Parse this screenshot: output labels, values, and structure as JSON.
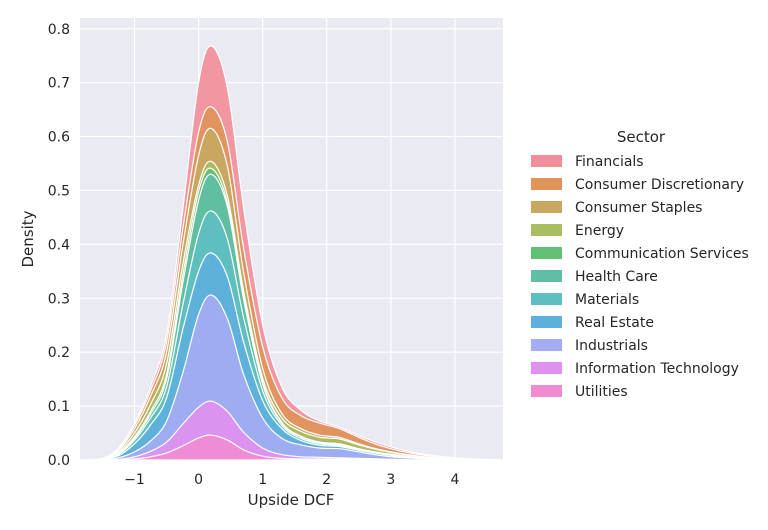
{
  "chart_data": {
    "type": "area",
    "stacked": true,
    "xlabel": "Upside DCF",
    "ylabel": "Density",
    "xlim": [
      -1.85,
      4.75
    ],
    "ylim": [
      0,
      0.82
    ],
    "xticks": [
      -1,
      0,
      1,
      2,
      3,
      4
    ],
    "yticks": [
      0.0,
      0.1,
      0.2,
      0.3,
      0.4,
      0.5,
      0.6,
      0.7,
      0.8
    ],
    "grid": true,
    "legend": {
      "title": "Sector",
      "placement": "right",
      "entries": [
        {
          "name": "Financials",
          "color": "#f28e9a"
        },
        {
          "name": "Consumer Discretionary",
          "color": "#e0945a"
        },
        {
          "name": "Consumer Staples",
          "color": "#c8a861"
        },
        {
          "name": "Energy",
          "color": "#a9bd62"
        },
        {
          "name": "Communication Services",
          "color": "#62bf76"
        },
        {
          "name": "Health Care",
          "color": "#5fbfa5"
        },
        {
          "name": "Materials",
          "color": "#5fbfc0"
        },
        {
          "name": "Real Estate",
          "color": "#5eb0dc"
        },
        {
          "name": "Industrials",
          "color": "#a4acf3"
        },
        {
          "name": "Information Technology",
          "color": "#df90f0"
        },
        {
          "name": "Utilities",
          "color": "#f28ad2"
        }
      ]
    },
    "x": [
      -1.8,
      -1.5,
      -1.25,
      -1.0,
      -0.75,
      -0.5,
      -0.25,
      0.0,
      0.2,
      0.45,
      0.7,
      1.0,
      1.3,
      1.6,
      1.9,
      2.2,
      2.5,
      2.8,
      3.1,
      3.4,
      3.7,
      4.0,
      4.3,
      4.7
    ],
    "cumulative_tops": [
      {
        "name": "Utilities",
        "values": [
          0,
          0,
          0.0,
          0.002,
          0.006,
          0.013,
          0.026,
          0.041,
          0.046,
          0.037,
          0.019,
          0.007,
          0.003,
          0.002,
          0.002,
          0.002,
          0.001,
          0.001,
          0,
          0,
          0,
          0,
          0,
          0
        ]
      },
      {
        "name": "Information Technology",
        "values": [
          0,
          0,
          0.001,
          0.006,
          0.016,
          0.033,
          0.066,
          0.098,
          0.109,
          0.09,
          0.052,
          0.022,
          0.01,
          0.006,
          0.005,
          0.004,
          0.003,
          0.002,
          0.001,
          0,
          0,
          0,
          0,
          0
        ]
      },
      {
        "name": "Industrials",
        "values": [
          0,
          0,
          0.004,
          0.015,
          0.035,
          0.072,
          0.16,
          0.27,
          0.306,
          0.262,
          0.16,
          0.078,
          0.04,
          0.028,
          0.022,
          0.021,
          0.015,
          0.009,
          0.005,
          0.003,
          0.002,
          0.001,
          0,
          0
        ]
      },
      {
        "name": "Real Estate",
        "values": [
          0,
          0.001,
          0.008,
          0.03,
          0.065,
          0.115,
          0.24,
          0.35,
          0.384,
          0.34,
          0.22,
          0.11,
          0.058,
          0.036,
          0.027,
          0.025,
          0.018,
          0.012,
          0.007,
          0.004,
          0.002,
          0.001,
          0,
          0
        ]
      },
      {
        "name": "Materials",
        "values": [
          0,
          0.001,
          0.01,
          0.037,
          0.078,
          0.135,
          0.285,
          0.42,
          0.462,
          0.41,
          0.266,
          0.128,
          0.064,
          0.04,
          0.03,
          0.027,
          0.019,
          0.013,
          0.008,
          0.005,
          0.003,
          0.001,
          0,
          0
        ]
      },
      {
        "name": "Health Care",
        "values": [
          0,
          0.001,
          0.011,
          0.04,
          0.085,
          0.15,
          0.325,
          0.482,
          0.53,
          0.47,
          0.3,
          0.14,
          0.068,
          0.043,
          0.032,
          0.029,
          0.02,
          0.014,
          0.009,
          0.005,
          0.003,
          0.001,
          0,
          0
        ]
      },
      {
        "name": "Communication Services",
        "values": [
          0,
          0.001,
          0.012,
          0.043,
          0.09,
          0.158,
          0.34,
          0.498,
          0.541,
          0.478,
          0.306,
          0.144,
          0.07,
          0.044,
          0.033,
          0.03,
          0.021,
          0.014,
          0.009,
          0.005,
          0.003,
          0.001,
          0,
          0
        ]
      },
      {
        "name": "Energy",
        "values": [
          0,
          0.002,
          0.015,
          0.05,
          0.103,
          0.178,
          0.36,
          0.51,
          0.554,
          0.49,
          0.316,
          0.152,
          0.078,
          0.053,
          0.042,
          0.039,
          0.028,
          0.019,
          0.012,
          0.007,
          0.004,
          0.002,
          0,
          0
        ]
      },
      {
        "name": "Consumer Staples",
        "values": [
          0,
          0.002,
          0.018,
          0.058,
          0.118,
          0.2,
          0.395,
          0.565,
          0.615,
          0.545,
          0.35,
          0.17,
          0.086,
          0.058,
          0.046,
          0.042,
          0.03,
          0.02,
          0.013,
          0.008,
          0.004,
          0.002,
          0,
          0
        ]
      },
      {
        "name": "Consumer Discretionary",
        "values": [
          0,
          0.002,
          0.02,
          0.064,
          0.128,
          0.218,
          0.425,
          0.608,
          0.655,
          0.59,
          0.395,
          0.21,
          0.115,
          0.082,
          0.068,
          0.058,
          0.042,
          0.028,
          0.018,
          0.011,
          0.006,
          0.003,
          0.001,
          0
        ]
      },
      {
        "name": "Financials",
        "values": [
          0,
          0.003,
          0.022,
          0.068,
          0.136,
          0.232,
          0.46,
          0.7,
          0.768,
          0.69,
          0.47,
          0.25,
          0.135,
          0.092,
          0.072,
          0.061,
          0.045,
          0.032,
          0.021,
          0.013,
          0.008,
          0.004,
          0.002,
          0
        ]
      }
    ]
  }
}
